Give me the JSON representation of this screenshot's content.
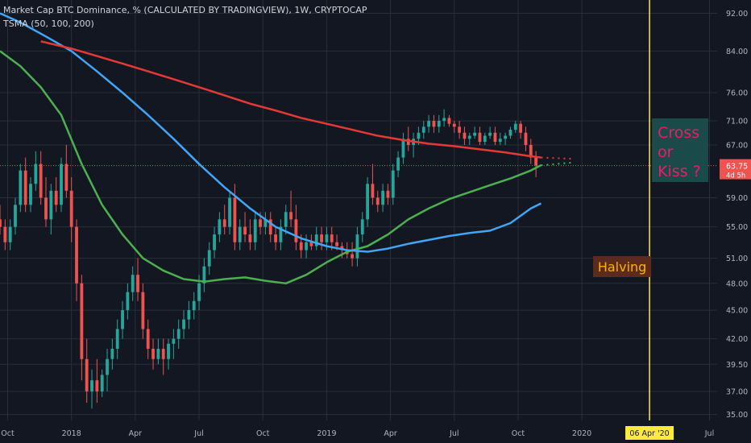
{
  "colors": {
    "background": "#131722",
    "grid": "#2a2e39",
    "up": "#26a69a",
    "down": "#ef5350",
    "sma50": "#4caf50",
    "sma100": "#42a5f5",
    "sma200": "#e53935",
    "halving_line": "#ffeb3b",
    "price_line": "#ef5350",
    "halving_label_bg": "#5d2a1e",
    "halving_label_text": "#ffb300",
    "note_bg": "#1a4a4a",
    "note_text": "#e91e63"
  },
  "chart_data": {
    "type": "candlestick",
    "legend": {
      "title": "Market Cap BTC Dominance, % (CALCULATED BY TRADINGVIEW), 1W, CRYPTOCAP",
      "indicator": "TSMA (50, 100, 200)"
    },
    "x_axis": {
      "ticks": [
        {
          "label": "Oct",
          "t": 2017.75
        },
        {
          "label": "2018",
          "t": 2018.0
        },
        {
          "label": "Apr",
          "t": 2018.25
        },
        {
          "label": "Jul",
          "t": 2018.5
        },
        {
          "label": "Oct",
          "t": 2018.75
        },
        {
          "label": "2019",
          "t": 2019.0
        },
        {
          "label": "Apr",
          "t": 2019.25
        },
        {
          "label": "Jul",
          "t": 2019.5
        },
        {
          "label": "Oct",
          "t": 2019.75
        },
        {
          "label": "2020",
          "t": 2020.0
        },
        {
          "label": "Jul",
          "t": 2020.5
        }
      ],
      "range": [
        2017.72,
        2020.53
      ]
    },
    "y_axis": {
      "scale": "log",
      "ticks": [
        "92.00",
        "84.00",
        "76.00",
        "71.00",
        "67.00",
        "59.00",
        "55.00",
        "51.00",
        "48.00",
        "45.00",
        "42.00",
        "39.50",
        "37.00",
        "35.00"
      ],
      "range": [
        34.5,
        95
      ]
    },
    "candles": [
      [
        2017.68,
        53,
        55,
        52,
        54
      ],
      [
        2017.7,
        54,
        57,
        53,
        56
      ],
      [
        2017.72,
        56,
        58,
        54,
        55
      ],
      [
        2017.74,
        55,
        56,
        52,
        53
      ],
      [
        2017.76,
        53,
        56,
        52,
        55
      ],
      [
        2017.78,
        55,
        59,
        54,
        58
      ],
      [
        2017.8,
        58,
        64,
        57,
        63
      ],
      [
        2017.82,
        63,
        65,
        57,
        58
      ],
      [
        2017.84,
        58,
        62,
        57,
        61
      ],
      [
        2017.86,
        61,
        66,
        60,
        64
      ],
      [
        2017.88,
        64,
        66,
        58,
        59
      ],
      [
        2017.9,
        59,
        62,
        55,
        56
      ],
      [
        2017.92,
        56,
        61,
        54,
        60
      ],
      [
        2017.94,
        60,
        62,
        57,
        58
      ],
      [
        2017.96,
        58,
        65,
        57,
        64
      ],
      [
        2017.98,
        64,
        67,
        59,
        60
      ],
      [
        2018.0,
        60,
        62,
        53,
        55
      ],
      [
        2018.02,
        55,
        56,
        46,
        48
      ],
      [
        2018.04,
        48,
        49,
        38,
        40
      ],
      [
        2018.06,
        40,
        42,
        36,
        37
      ],
      [
        2018.08,
        37,
        39,
        35.5,
        38
      ],
      [
        2018.1,
        38,
        40,
        36,
        37
      ],
      [
        2018.12,
        37,
        39,
        36.5,
        38.5
      ],
      [
        2018.14,
        38.5,
        41,
        37,
        40
      ],
      [
        2018.16,
        40,
        42,
        39,
        41
      ],
      [
        2018.18,
        41,
        44,
        40,
        43
      ],
      [
        2018.2,
        43,
        46,
        42,
        45
      ],
      [
        2018.22,
        45,
        48,
        44,
        47
      ],
      [
        2018.24,
        47,
        50,
        46,
        49
      ],
      [
        2018.26,
        49,
        51,
        46,
        47
      ],
      [
        2018.28,
        47,
        48,
        42,
        43
      ],
      [
        2018.3,
        43,
        44,
        40,
        41
      ],
      [
        2018.32,
        41,
        42,
        39,
        40
      ],
      [
        2018.34,
        40,
        42,
        39.5,
        41
      ],
      [
        2018.36,
        41,
        42,
        38.5,
        40
      ],
      [
        2018.38,
        40,
        42,
        39,
        41.5
      ],
      [
        2018.4,
        41.5,
        43,
        40,
        42
      ],
      [
        2018.42,
        42,
        44,
        41,
        43
      ],
      [
        2018.44,
        43,
        45,
        42,
        44
      ],
      [
        2018.46,
        44,
        46,
        43,
        45
      ],
      [
        2018.48,
        45,
        47,
        44,
        46
      ],
      [
        2018.5,
        46,
        49,
        45,
        48
      ],
      [
        2018.52,
        48,
        51,
        47,
        50
      ],
      [
        2018.54,
        50,
        53,
        49,
        52
      ],
      [
        2018.56,
        52,
        55,
        51,
        54
      ],
      [
        2018.58,
        54,
        57,
        53,
        56
      ],
      [
        2018.6,
        56,
        58,
        54,
        55
      ],
      [
        2018.62,
        55,
        60,
        54,
        59
      ],
      [
        2018.64,
        59,
        61,
        52,
        53
      ],
      [
        2018.66,
        53,
        56,
        52,
        55
      ],
      [
        2018.68,
        55,
        57,
        53,
        54
      ],
      [
        2018.7,
        54,
        56,
        52,
        53
      ],
      [
        2018.72,
        53,
        57,
        52,
        56
      ],
      [
        2018.74,
        56,
        57,
        54,
        55
      ],
      [
        2018.76,
        55,
        57,
        54,
        56
      ],
      [
        2018.78,
        56,
        57,
        53,
        54
      ],
      [
        2018.8,
        54,
        55,
        52,
        53
      ],
      [
        2018.82,
        53,
        56,
        52,
        55
      ],
      [
        2018.84,
        55,
        58,
        54,
        57
      ],
      [
        2018.86,
        57,
        60,
        55,
        56
      ],
      [
        2018.88,
        56,
        58,
        52,
        53
      ],
      [
        2018.9,
        53,
        54,
        51,
        52
      ],
      [
        2018.92,
        52,
        54,
        51,
        53
      ],
      [
        2018.94,
        53,
        54,
        52,
        52.5
      ],
      [
        2018.96,
        52.5,
        55,
        52,
        54
      ],
      [
        2018.98,
        54,
        55,
        52,
        53
      ],
      [
        2019.0,
        53,
        55,
        52,
        54
      ],
      [
        2019.02,
        54,
        55,
        52,
        53
      ],
      [
        2019.04,
        53,
        54,
        52,
        52.5
      ],
      [
        2019.06,
        52.5,
        53,
        51,
        52
      ],
      [
        2019.08,
        52,
        53,
        51,
        51.5
      ],
      [
        2019.1,
        51.5,
        53,
        50,
        51
      ],
      [
        2019.12,
        51,
        55,
        50,
        54
      ],
      [
        2019.14,
        54,
        57,
        53,
        56
      ],
      [
        2019.16,
        56,
        62,
        55,
        61
      ],
      [
        2019.18,
        61,
        64,
        58,
        59
      ],
      [
        2019.2,
        59,
        60,
        57,
        58
      ],
      [
        2019.22,
        58,
        61,
        57,
        60
      ],
      [
        2019.24,
        60,
        61,
        58,
        59
      ],
      [
        2019.26,
        59,
        64,
        58,
        63
      ],
      [
        2019.28,
        63,
        66,
        62,
        65
      ],
      [
        2019.3,
        65,
        69,
        64,
        68
      ],
      [
        2019.32,
        68,
        70,
        66,
        67
      ],
      [
        2019.34,
        67,
        69,
        65,
        68
      ],
      [
        2019.36,
        68,
        70,
        67,
        69
      ],
      [
        2019.38,
        69,
        71,
        68,
        70
      ],
      [
        2019.4,
        70,
        72,
        69,
        71
      ],
      [
        2019.42,
        71,
        72,
        69,
        70
      ],
      [
        2019.44,
        70,
        72,
        69,
        71
      ],
      [
        2019.46,
        71,
        73,
        70,
        71.5
      ],
      [
        2019.48,
        71.5,
        72,
        70,
        70.5
      ],
      [
        2019.5,
        70.5,
        71,
        69,
        70
      ],
      [
        2019.52,
        70,
        71,
        68,
        69
      ],
      [
        2019.54,
        69,
        70,
        67,
        68
      ],
      [
        2019.56,
        68,
        69,
        67,
        68.5
      ],
      [
        2019.58,
        68.5,
        70,
        68,
        69
      ],
      [
        2019.6,
        69,
        70,
        67,
        67.5
      ],
      [
        2019.62,
        67.5,
        69,
        67,
        68.5
      ],
      [
        2019.64,
        68.5,
        70,
        68,
        69
      ],
      [
        2019.66,
        69,
        70,
        67,
        67.5
      ],
      [
        2019.68,
        67.5,
        69,
        67,
        68
      ],
      [
        2019.7,
        68,
        69,
        67,
        68.5
      ],
      [
        2019.72,
        68.5,
        70,
        68,
        69.5
      ],
      [
        2019.74,
        69.5,
        71,
        69,
        70.5
      ],
      [
        2019.76,
        70.5,
        71,
        68,
        69
      ],
      [
        2019.78,
        69,
        70,
        66,
        67
      ],
      [
        2019.8,
        67,
        68,
        64,
        65
      ],
      [
        2019.82,
        65,
        66,
        62,
        63.75
      ]
    ],
    "series": [
      {
        "name": "SMA 50",
        "points": [
          [
            2017.72,
            84
          ],
          [
            2017.8,
            81
          ],
          [
            2017.88,
            77
          ],
          [
            2017.96,
            72
          ],
          [
            2018.04,
            64
          ],
          [
            2018.12,
            58
          ],
          [
            2018.2,
            54
          ],
          [
            2018.28,
            51
          ],
          [
            2018.36,
            49.5
          ],
          [
            2018.44,
            48.5
          ],
          [
            2018.52,
            48.2
          ],
          [
            2018.6,
            48.5
          ],
          [
            2018.68,
            48.7
          ],
          [
            2018.76,
            48.3
          ],
          [
            2018.84,
            48
          ],
          [
            2018.92,
            49
          ],
          [
            2019.0,
            50.5
          ],
          [
            2019.08,
            51.8
          ],
          [
            2019.16,
            52.5
          ],
          [
            2019.24,
            54
          ],
          [
            2019.32,
            56
          ],
          [
            2019.4,
            57.5
          ],
          [
            2019.48,
            58.8
          ],
          [
            2019.56,
            59.8
          ],
          [
            2019.64,
            60.8
          ],
          [
            2019.72,
            61.8
          ],
          [
            2019.8,
            63
          ],
          [
            2019.84,
            63.8
          ]
        ],
        "projection": [
          [
            2019.84,
            63.8
          ],
          [
            2019.96,
            64.2
          ]
        ]
      },
      {
        "name": "SMA 100",
        "points": [
          [
            2017.72,
            92
          ],
          [
            2017.8,
            90
          ],
          [
            2017.9,
            87
          ],
          [
            2018.0,
            84
          ],
          [
            2018.1,
            80
          ],
          [
            2018.2,
            76
          ],
          [
            2018.3,
            72
          ],
          [
            2018.4,
            68
          ],
          [
            2018.5,
            64
          ],
          [
            2018.6,
            60.5
          ],
          [
            2018.7,
            57.5
          ],
          [
            2018.8,
            55
          ],
          [
            2018.9,
            53.5
          ],
          [
            2019.0,
            52.5
          ],
          [
            2019.08,
            52
          ],
          [
            2019.16,
            51.8
          ],
          [
            2019.24,
            52.2
          ],
          [
            2019.32,
            52.8
          ],
          [
            2019.4,
            53.3
          ],
          [
            2019.48,
            53.8
          ],
          [
            2019.56,
            54.2
          ],
          [
            2019.64,
            54.5
          ],
          [
            2019.72,
            55.5
          ],
          [
            2019.8,
            57.5
          ],
          [
            2019.84,
            58.2
          ]
        ]
      },
      {
        "name": "SMA 200",
        "points": [
          [
            2017.88,
            86
          ],
          [
            2018.0,
            84.5
          ],
          [
            2018.1,
            83
          ],
          [
            2018.2,
            81.5
          ],
          [
            2018.3,
            80
          ],
          [
            2018.4,
            78.5
          ],
          [
            2018.5,
            77
          ],
          [
            2018.6,
            75.5
          ],
          [
            2018.7,
            74
          ],
          [
            2018.8,
            72.8
          ],
          [
            2018.9,
            71.5
          ],
          [
            2019.0,
            70.5
          ],
          [
            2019.1,
            69.5
          ],
          [
            2019.2,
            68.5
          ],
          [
            2019.3,
            67.8
          ],
          [
            2019.4,
            67.2
          ],
          [
            2019.5,
            66.8
          ],
          [
            2019.6,
            66.3
          ],
          [
            2019.7,
            65.8
          ],
          [
            2019.8,
            65.2
          ],
          [
            2019.84,
            65
          ]
        ],
        "projection": [
          [
            2019.84,
            65
          ],
          [
            2019.96,
            64.8
          ]
        ]
      }
    ],
    "current_price": {
      "value": 63.75,
      "label": "63.75",
      "countdown": "4d 5h"
    },
    "halving": {
      "t": 2020.265,
      "date_label": "06 Apr '20",
      "label": "Halving"
    },
    "annotation": {
      "lines": [
        "Cross",
        "or",
        "Kiss ?"
      ]
    }
  }
}
